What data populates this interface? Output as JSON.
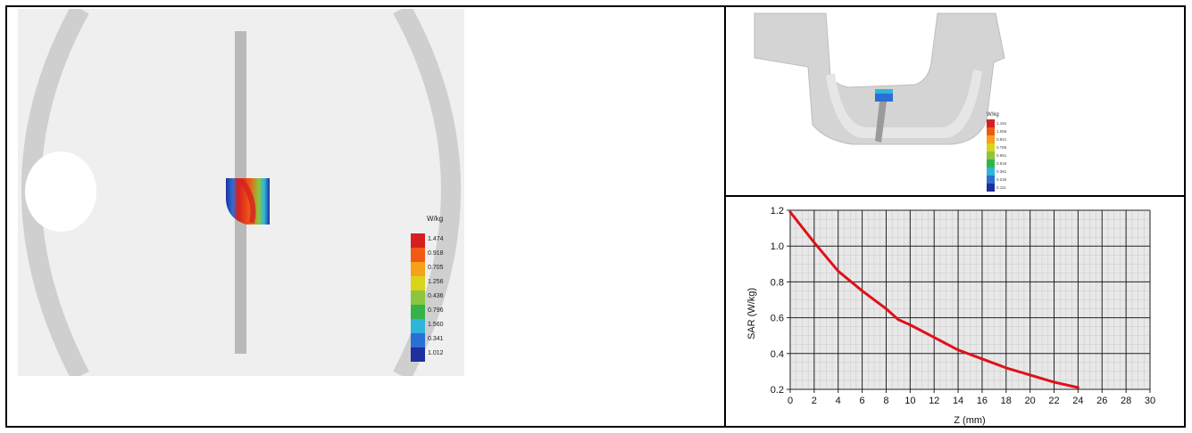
{
  "left_view": {
    "legend_title": "W/kg",
    "legend_ticks": [
      "1.474",
      "0.918",
      "0.705",
      "1.256",
      "0.436",
      "0.796",
      "1.560",
      "0.341",
      "1.012"
    ],
    "colors": [
      "#d62020",
      "#f05a14",
      "#f5a11a",
      "#d9d31a",
      "#8cc63f",
      "#35b34a",
      "#2fb5d9",
      "#2a6fd6",
      "#1e2f9e"
    ]
  },
  "right_top_view": {
    "legend_title": "W/kg",
    "legend_ticks": [
      "1.191",
      "1.056",
      "0.921",
      "0.786",
      "0.651",
      "0.516",
      "0.381",
      "0.246",
      "0.111"
    ]
  },
  "chart_data": {
    "type": "line",
    "xlabel": "Z (mm)",
    "ylabel": "SAR (W/kg)",
    "xlim": [
      0,
      30
    ],
    "ylim": [
      0.2,
      1.2
    ],
    "xticks": [
      0,
      2,
      4,
      6,
      8,
      10,
      12,
      14,
      16,
      18,
      20,
      22,
      24,
      26,
      28,
      30
    ],
    "yticks": [
      0.2,
      0.4,
      0.6,
      0.8,
      1.0,
      1.2
    ],
    "ytick_labels": [
      "0.2",
      "0.4",
      "0.6",
      "0.8",
      "1.0",
      "1.2"
    ],
    "grid": true,
    "series": [
      {
        "color": "#e0101a",
        "x": [
          0,
          2,
          4,
          6,
          8,
          9,
          10,
          12,
          14,
          16,
          18,
          20,
          22,
          24
        ],
        "values": [
          1.19,
          1.02,
          0.86,
          0.75,
          0.65,
          0.59,
          0.56,
          0.49,
          0.42,
          0.37,
          0.32,
          0.28,
          0.24,
          0.21
        ]
      }
    ]
  }
}
